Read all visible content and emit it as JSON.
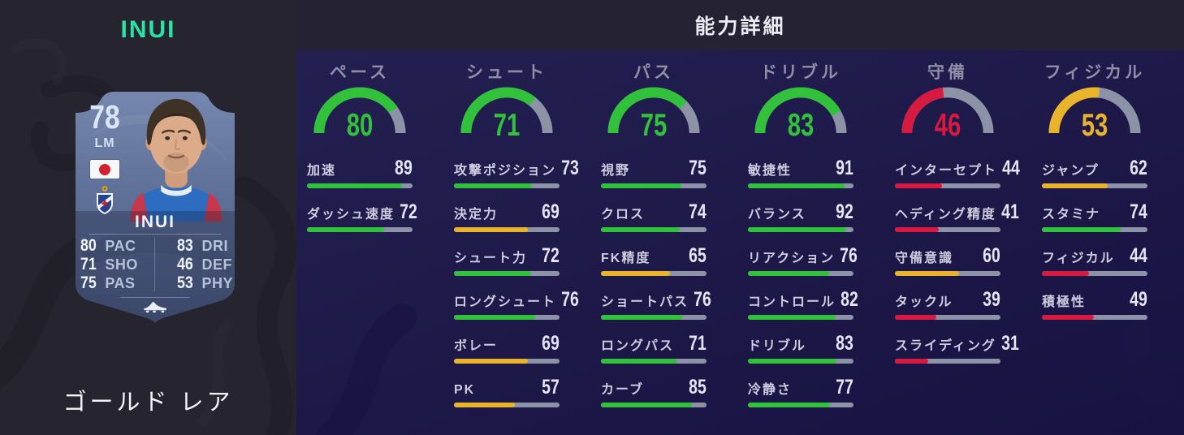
{
  "left_panel": {
    "player_name": "INUI",
    "rarity_label": "ゴールド レア",
    "card": {
      "rating": "78",
      "position": "LM",
      "name": "INUI",
      "nation_icon": "japan-flag",
      "club_icon": "eibar-crest",
      "stats": [
        {
          "label": "PAC",
          "value": "80"
        },
        {
          "label": "SHO",
          "value": "71"
        },
        {
          "label": "PAS",
          "value": "75"
        },
        {
          "label": "DRI",
          "value": "83"
        },
        {
          "label": "DEF",
          "value": "46"
        },
        {
          "label": "PHY",
          "value": "53"
        }
      ]
    }
  },
  "detail_panel": {
    "title": "能力詳細",
    "max_value": 99,
    "thresholds": {
      "high_min": 70,
      "mid_min": 50
    },
    "colors": {
      "high": "#32c13b",
      "mid": "#e9b42a",
      "low": "#d81a40",
      "track": "#8d93a6"
    },
    "groups": [
      {
        "key": "pace",
        "name": "ペース",
        "value": 80,
        "stats": [
          {
            "label": "加速",
            "value": 89
          },
          {
            "label": "ダッシュ速度",
            "value": 72
          }
        ]
      },
      {
        "key": "shooting",
        "name": "シュート",
        "value": 71,
        "stats": [
          {
            "label": "攻撃ポジション",
            "value": 73
          },
          {
            "label": "決定力",
            "value": 69
          },
          {
            "label": "シュート力",
            "value": 72
          },
          {
            "label": "ロングシュート",
            "value": 76
          },
          {
            "label": "ボレー",
            "value": 69
          },
          {
            "label": "PK",
            "value": 57
          }
        ]
      },
      {
        "key": "passing",
        "name": "パス",
        "value": 75,
        "stats": [
          {
            "label": "視野",
            "value": 75
          },
          {
            "label": "クロス",
            "value": 74
          },
          {
            "label": "FK精度",
            "value": 65
          },
          {
            "label": "ショートパス",
            "value": 76
          },
          {
            "label": "ロングパス",
            "value": 71
          },
          {
            "label": "カーブ",
            "value": 85
          }
        ]
      },
      {
        "key": "dribbling",
        "name": "ドリブル",
        "value": 83,
        "stats": [
          {
            "label": "敏捷性",
            "value": 91
          },
          {
            "label": "バランス",
            "value": 92
          },
          {
            "label": "リアクション",
            "value": 76
          },
          {
            "label": "コントロール",
            "value": 82
          },
          {
            "label": "ドリブル",
            "value": 83
          },
          {
            "label": "冷静さ",
            "value": 77
          }
        ]
      },
      {
        "key": "defending",
        "name": "守備",
        "value": 46,
        "stats": [
          {
            "label": "インターセプト",
            "value": 44
          },
          {
            "label": "ヘディング精度",
            "value": 41
          },
          {
            "label": "守備意識",
            "value": 60
          },
          {
            "label": "タックル",
            "value": 39
          },
          {
            "label": "スライディング",
            "value": 31
          }
        ]
      },
      {
        "key": "physical",
        "name": "フィジカル",
        "value": 53,
        "stats": [
          {
            "label": "ジャンプ",
            "value": 62
          },
          {
            "label": "スタミナ",
            "value": 74
          },
          {
            "label": "フィジカル",
            "value": 44
          },
          {
            "label": "積極性",
            "value": 49
          }
        ]
      }
    ]
  }
}
